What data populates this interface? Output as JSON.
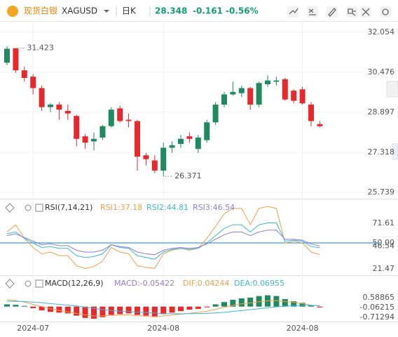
{
  "header": {
    "name": "现货白银",
    "symbol": "XAGUSD",
    "period": "日K",
    "price": "28.348",
    "change": "-0.161",
    "change_pct": "-0.56%"
  },
  "chart_data": [
    {
      "type": "candlestick",
      "up_color": "#1f8a5f",
      "down_color": "#e8282b",
      "grid": true,
      "categories": [
        null,
        null,
        null,
        "2024-07",
        null,
        null,
        null,
        null,
        null,
        null,
        null,
        null,
        null,
        null,
        null,
        null,
        null,
        null,
        "2024-08",
        null,
        null,
        null,
        null,
        null,
        null,
        null,
        null,
        null,
        null,
        null,
        null,
        null,
        null,
        null,
        "2024-08",
        null,
        null
      ],
      "open": [
        30.85,
        31.42,
        30.55,
        30.3,
        29.85,
        29.1,
        29.2,
        28.95,
        28.75,
        27.95,
        27.75,
        27.9,
        28.35,
        29.05,
        28.6,
        28.55,
        27.2,
        27.0,
        26.6,
        27.5,
        27.65,
        27.95,
        27.45,
        27.8,
        28.5,
        29.2,
        29.6,
        29.65,
        29.85,
        29.2,
        30.0,
        30.1,
        30.2,
        29.75,
        29.8,
        29.2,
        28.43
      ],
      "high": [
        31.5,
        31.423,
        30.7,
        30.4,
        29.95,
        29.25,
        29.3,
        29.2,
        28.8,
        28.05,
        28.1,
        28.4,
        29.1,
        29.15,
        28.85,
        28.6,
        27.3,
        27.2,
        27.7,
        27.75,
        28.0,
        28.1,
        28.0,
        28.6,
        29.3,
        29.7,
        30.1,
        29.95,
        29.9,
        30.1,
        30.35,
        30.3,
        30.25,
        29.8,
        29.9,
        29.3,
        28.55
      ],
      "low": [
        30.75,
        30.45,
        30.1,
        29.6,
        28.95,
        28.9,
        28.6,
        28.6,
        27.55,
        27.45,
        27.4,
        27.8,
        28.3,
        28.5,
        28.3,
        26.6,
        26.8,
        26.5,
        26.371,
        27.3,
        27.5,
        27.7,
        27.3,
        27.7,
        28.4,
        29.1,
        29.55,
        29.5,
        29.0,
        29.1,
        29.9,
        29.95,
        29.35,
        29.25,
        29.2,
        28.35,
        28.3
      ],
      "close": [
        31.4,
        30.55,
        30.25,
        29.85,
        29.1,
        29.2,
        29.0,
        28.85,
        27.85,
        27.7,
        27.85,
        28.35,
        29.0,
        28.55,
        28.55,
        27.15,
        27.05,
        26.6,
        27.5,
        27.6,
        27.85,
        27.85,
        27.9,
        28.5,
        29.2,
        29.6,
        29.7,
        29.85,
        29.2,
        30.05,
        30.15,
        30.15,
        29.4,
        29.35,
        29.25,
        28.55,
        28.348
      ],
      "annotations": [
        {
          "index": 1,
          "value": 31.423,
          "label": "31.423"
        },
        {
          "index": 18,
          "value": 26.371,
          "label": "26.371"
        }
      ],
      "ylim": [
        25.52,
        32.38
      ],
      "yticks": [
        32.054,
        30.476,
        28.897,
        27.318,
        25.739
      ]
    },
    {
      "type": "line",
      "title": "RSI(7,14,21)",
      "grid": true,
      "series": [
        {
          "name": "RSI1:37.18",
          "color": "#f0a04b",
          "values": [
            62,
            70,
            55,
            45,
            38,
            40,
            36,
            36,
            25,
            22,
            24,
            30,
            45,
            40,
            38,
            25,
            23,
            22,
            38,
            42,
            44,
            42,
            44,
            55,
            68,
            82,
            88,
            88,
            70,
            88,
            90,
            88,
            50,
            52,
            50,
            40,
            37.18
          ]
        },
        {
          "name": "RSI2:44.81",
          "color": "#3cb8d8",
          "values": [
            60,
            62,
            55,
            50,
            45,
            46,
            44,
            44,
            36,
            34,
            35,
            38,
            48,
            45,
            44,
            36,
            34,
            32,
            40,
            43,
            44,
            43,
            44,
            50,
            58,
            66,
            70,
            70,
            62,
            70,
            72,
            72,
            52,
            53,
            52,
            46,
            44.81
          ]
        },
        {
          "name": "RSI3:46.54",
          "color": "#8f7fd6",
          "values": [
            58,
            60,
            56,
            52,
            48,
            49,
            47,
            47,
            42,
            40,
            40,
            42,
            48,
            46,
            45,
            40,
            38,
            37,
            42,
            44,
            45,
            44,
            45,
            49,
            54,
            59,
            62,
            62,
            58,
            62,
            64,
            64,
            54,
            54,
            53,
            49,
            46.54
          ]
        }
      ],
      "ref_line": {
        "value": 50,
        "color": "#3a9ee6"
      },
      "ylim": [
        14.5,
        93.2
      ],
      "yticks": [
        71.61,
        {
          "value": 50,
          "label": "50.00"
        },
        46.54,
        21.47
      ]
    },
    {
      "type": "macd",
      "title": "MACD(12,26,9)",
      "up_color": "#1f8a5f",
      "down_color": "#e8282b",
      "histogram": {
        "name": "MACD:-0.05422",
        "values": [
          0.15,
          0.12,
          0.05,
          -0.1,
          -0.25,
          -0.35,
          -0.4,
          -0.45,
          -0.6,
          -0.75,
          -0.8,
          -0.7,
          -0.55,
          -0.5,
          -0.45,
          -0.55,
          -0.6,
          -0.65,
          -0.5,
          -0.4,
          -0.3,
          -0.2,
          -0.15,
          -0.05,
          0.15,
          0.3,
          0.45,
          0.55,
          0.6,
          0.7,
          0.75,
          0.7,
          0.5,
          0.35,
          0.25,
          0.1,
          -0.05422
        ]
      },
      "series": [
        {
          "name": "DIF:0.04244",
          "color": "#f0a04b",
          "values": [
            0.45,
            0.4,
            0.3,
            0.15,
            0,
            -0.15,
            -0.25,
            -0.35,
            -0.45,
            -0.55,
            -0.62,
            -0.62,
            -0.58,
            -0.56,
            -0.55,
            -0.6,
            -0.64,
            -0.68,
            -0.62,
            -0.56,
            -0.5,
            -0.44,
            -0.38,
            -0.3,
            -0.18,
            -0.05,
            0.08,
            0.18,
            0.24,
            0.32,
            0.38,
            0.4,
            0.34,
            0.28,
            0.2,
            0.1,
            0.04244
          ]
        },
        {
          "name": "DEA:0.06955",
          "color": "#3cb8d8",
          "values": [
            0.35,
            0.36,
            0.33,
            0.3,
            0.25,
            0.2,
            0.15,
            0.1,
            0.04,
            -0.05,
            -0.12,
            -0.2,
            -0.26,
            -0.3,
            -0.33,
            -0.36,
            -0.4,
            -0.43,
            -0.46,
            -0.47,
            -0.48,
            -0.47,
            -0.46,
            -0.44,
            -0.42,
            -0.38,
            -0.32,
            -0.26,
            -0.2,
            -0.14,
            -0.08,
            -0.02,
            0.03,
            0.06,
            0.08,
            0.08,
            0.06955
          ]
        }
      ],
      "ylim": [
        -0.99,
        1.8
      ],
      "yticks": [
        0.58865,
        -0.06215,
        -0.71294
      ]
    }
  ]
}
